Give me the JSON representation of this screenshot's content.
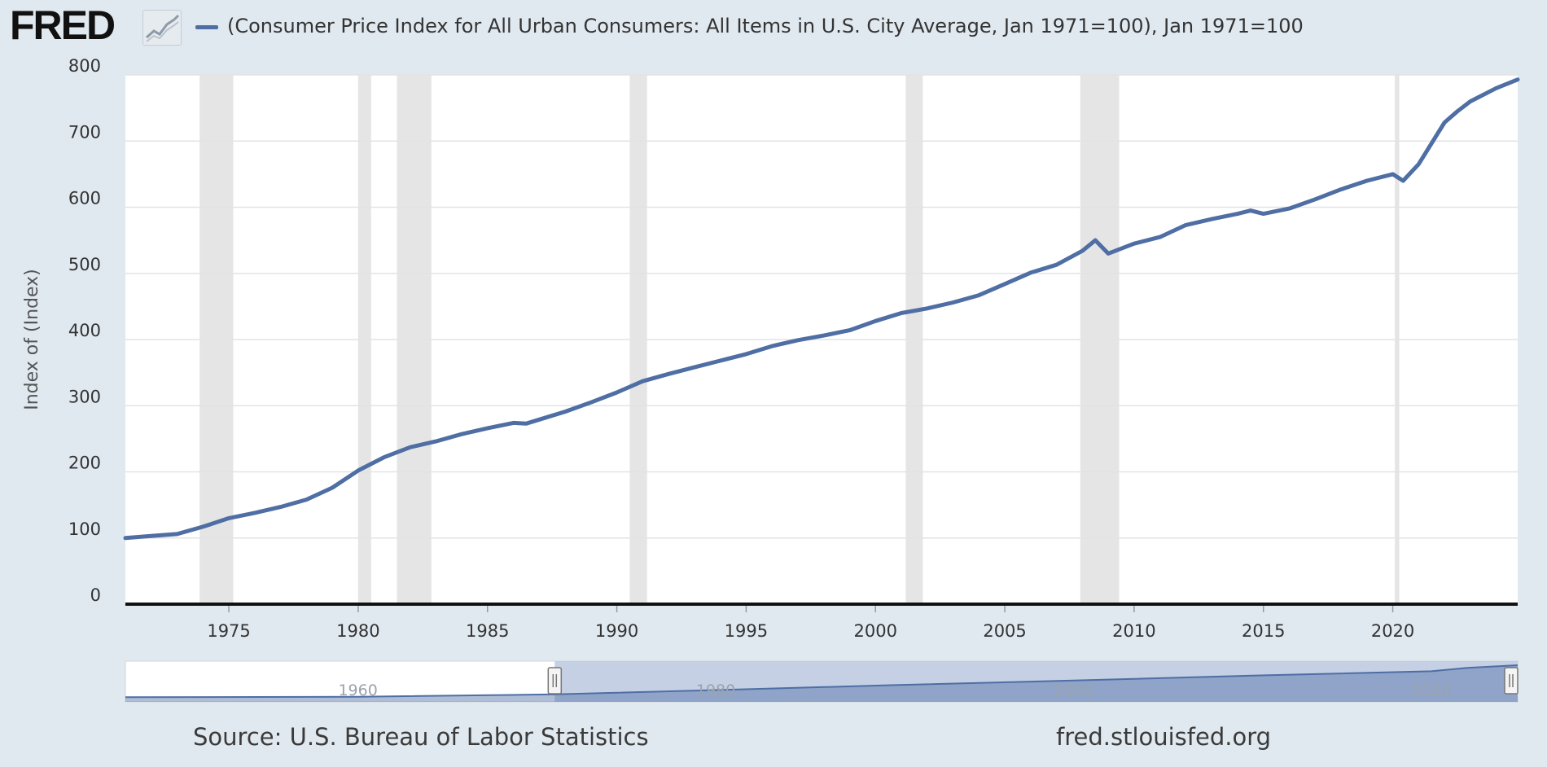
{
  "header": {
    "logo_text": "FRED",
    "legend_label": "(Consumer Price Index for All Urban Consumers: All Items in U.S. City Average, Jan 1971=100), Jan 1971=100"
  },
  "footer": {
    "source": "Source: U.S. Bureau of Labor Statistics",
    "url": "fred.stlouisfed.org"
  },
  "colors": {
    "series": "#4e6ea4",
    "recession": "#e5e5e5",
    "background": "#e1e9f0",
    "navigator_fill": "#b6c4de"
  },
  "chart_data": {
    "type": "line",
    "title": "",
    "ylabel": "Index of (Index)",
    "xlabel": "",
    "xlim": [
      1971.0,
      2024.83
    ],
    "ylim": [
      0,
      800
    ],
    "yticks": [
      "0",
      "100",
      "200",
      "300",
      "400",
      "500",
      "600",
      "700",
      "800"
    ],
    "xticks": [
      "1975",
      "1980",
      "1985",
      "1990",
      "1995",
      "2000",
      "2005",
      "2010",
      "2015",
      "2020"
    ],
    "recessions": [
      [
        1973.87,
        1975.17
      ],
      [
        1980.0,
        1980.5
      ],
      [
        1981.5,
        1982.83
      ],
      [
        1990.5,
        1991.17
      ],
      [
        2001.17,
        2001.83
      ],
      [
        2007.92,
        2009.42
      ],
      [
        2020.08,
        2020.25
      ]
    ],
    "series": [
      {
        "name": "CPI-U, Jan 1971=100",
        "x": [
          1971.0,
          1972.0,
          1973.0,
          1974.0,
          1975.0,
          1976.0,
          1977.0,
          1978.0,
          1979.0,
          1980.0,
          1981.0,
          1982.0,
          1983.0,
          1984.0,
          1985.0,
          1986.0,
          1986.5,
          1987.0,
          1988.0,
          1989.0,
          1990.0,
          1991.0,
          1992.0,
          1993.0,
          1994.0,
          1995.0,
          1996.0,
          1997.0,
          1998.0,
          1999.0,
          2000.0,
          2001.0,
          2002.0,
          2003.0,
          2004.0,
          2005.0,
          2006.0,
          2007.0,
          2008.0,
          2008.5,
          2009.0,
          2010.0,
          2011.0,
          2012.0,
          2013.0,
          2014.0,
          2014.5,
          2015.0,
          2016.0,
          2017.0,
          2018.0,
          2019.0,
          2020.0,
          2020.4,
          2021.0,
          2022.0,
          2022.5,
          2023.0,
          2024.0,
          2024.83
        ],
        "values": [
          100,
          103,
          106,
          117,
          130,
          138,
          147,
          158,
          176,
          202,
          222,
          237,
          246,
          257,
          266,
          274,
          273,
          279,
          291,
          305,
          320,
          337,
          348,
          358,
          368,
          378,
          390,
          399,
          406,
          414,
          428,
          440,
          447,
          456,
          467,
          484,
          501,
          513,
          534,
          550,
          530,
          545,
          555,
          573,
          582,
          590,
          595,
          590,
          598,
          612,
          627,
          640,
          650,
          640,
          665,
          728,
          745,
          760,
          780,
          793
        ]
      }
    ],
    "navigator": {
      "xlim": [
        1947.0,
        2024.83
      ],
      "labels": [
        "1960",
        "1980",
        "2000",
        "2020"
      ],
      "selection": [
        1971.0,
        2024.83
      ],
      "x": [
        1947,
        1960,
        1971,
        1980,
        1990,
        2000,
        2010,
        2020,
        2022,
        2024.83
      ],
      "values": [
        33,
        44,
        100,
        202,
        320,
        428,
        545,
        650,
        728,
        793
      ]
    }
  }
}
